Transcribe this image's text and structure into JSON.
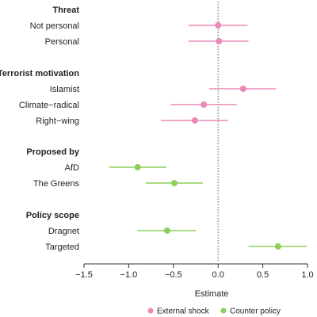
{
  "chart_data": {
    "type": "scatter",
    "xlabel": "Estimate",
    "xlim": [
      -1.5,
      1.0
    ],
    "xticks": [
      "−1.5",
      "−1.0",
      "−0.5",
      "0.0",
      "0.5",
      "1.0"
    ],
    "xtick_values": [
      -1.5,
      -1.0,
      -0.5,
      0.0,
      0.5,
      1.0
    ],
    "reference_line": {
      "x": 0,
      "style": "dotted"
    },
    "legend_position": "bottom",
    "series": [
      {
        "name": "External shock",
        "color": "#e88ab5"
      },
      {
        "name": "Counter policy",
        "color": "#8dcf5a"
      }
    ],
    "groups": [
      {
        "title": "Threat",
        "rows": [
          {
            "label": "Not personal",
            "series": 0,
            "estimate": 0.0,
            "ci": [
              -0.33,
              0.33
            ]
          },
          {
            "label": "Personal",
            "series": 0,
            "estimate": 0.01,
            "ci": [
              -0.33,
              0.34
            ]
          }
        ]
      },
      {
        "title": "Terrorist motivation",
        "rows": [
          {
            "label": "Islamist",
            "series": 0,
            "estimate": 0.28,
            "ci": [
              -0.1,
              0.65
            ]
          },
          {
            "label": "Climate−radical",
            "series": 0,
            "estimate": -0.16,
            "ci": [
              -0.53,
              0.21
            ]
          },
          {
            "label": "Right−wing",
            "series": 0,
            "estimate": -0.26,
            "ci": [
              -0.64,
              0.11
            ]
          }
        ]
      },
      {
        "title": "Proposed by",
        "rows": [
          {
            "label": "AfD",
            "series": 1,
            "estimate": -0.9,
            "ci": [
              -1.22,
              -0.58
            ]
          },
          {
            "label": "The Greens",
            "series": 1,
            "estimate": -0.49,
            "ci": [
              -0.81,
              -0.17
            ]
          }
        ]
      },
      {
        "title": "Policy scope",
        "rows": [
          {
            "label": "Dragnet",
            "series": 1,
            "estimate": -0.57,
            "ci": [
              -0.9,
              -0.25
            ]
          },
          {
            "label": "Targeted",
            "series": 1,
            "estimate": 0.67,
            "ci": [
              0.34,
              0.99
            ]
          }
        ]
      }
    ]
  }
}
